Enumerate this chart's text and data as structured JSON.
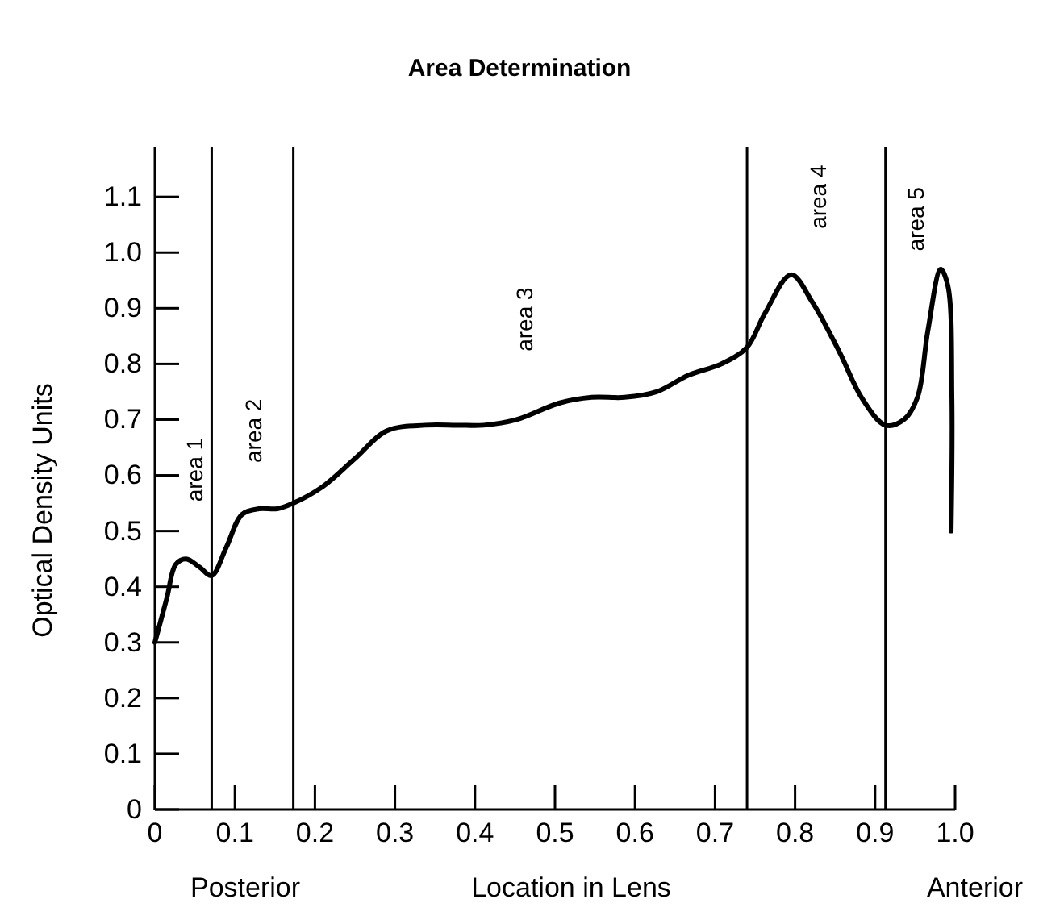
{
  "chart_data": {
    "type": "line",
    "title": "Area Determination",
    "xlabel": "Location in Lens",
    "ylabel": "Optical Density Units",
    "annotations": [
      "Posterior",
      "Anterior",
      "area 1",
      "area 2",
      "area 3",
      "area 4",
      "area 5"
    ],
    "series": [
      {
        "color": "#000000",
        "x": [
          0,
          0.015,
          0.026,
          0.039,
          0.056,
          0.071,
          0.089,
          0.109,
          0.13,
          0.153,
          0.173,
          0.21,
          0.25,
          0.29,
          0.338,
          0.378,
          0.411,
          0.452,
          0.506,
          0.546,
          0.587,
          0.627,
          0.667,
          0.708,
          0.74,
          0.762,
          0.795,
          0.822,
          0.856,
          0.883,
          0.913,
          0.936,
          0.953,
          0.966,
          0.982,
          0.991,
          0.996,
          0.995
        ],
        "values": [
          0.3,
          0.38,
          0.44,
          0.45,
          0.435,
          0.42,
          0.47,
          0.53,
          0.54,
          0.54,
          0.55,
          0.58,
          0.63,
          0.68,
          0.69,
          0.69,
          0.69,
          0.7,
          0.73,
          0.74,
          0.74,
          0.75,
          0.78,
          0.8,
          0.83,
          0.89,
          0.96,
          0.91,
          0.82,
          0.74,
          0.69,
          0.7,
          0.74,
          0.86,
          0.97,
          0.94,
          0.74,
          0.5
        ]
      }
    ],
    "ref_lines": [
      {
        "axis": "x",
        "value": 0.071
      },
      {
        "axis": "x",
        "value": 0.173
      },
      {
        "axis": "x",
        "value": 0.74
      },
      {
        "axis": "x",
        "value": 0.913
      }
    ],
    "xlim": [
      0,
      1
    ],
    "ylim": [
      0,
      1.19
    ],
    "xticks": [
      0,
      0.1,
      0.2,
      0.3,
      0.4,
      0.5,
      0.6,
      0.7,
      0.8,
      0.9,
      {
        "value": 1,
        "label": "1.0"
      }
    ],
    "yticks": [
      0,
      0.1,
      0.2,
      0.3,
      0.4,
      0.5,
      0.6,
      0.7,
      0.8,
      0.9,
      {
        "value": 1,
        "label": "1.0"
      },
      1.1
    ],
    "grid": false
  }
}
